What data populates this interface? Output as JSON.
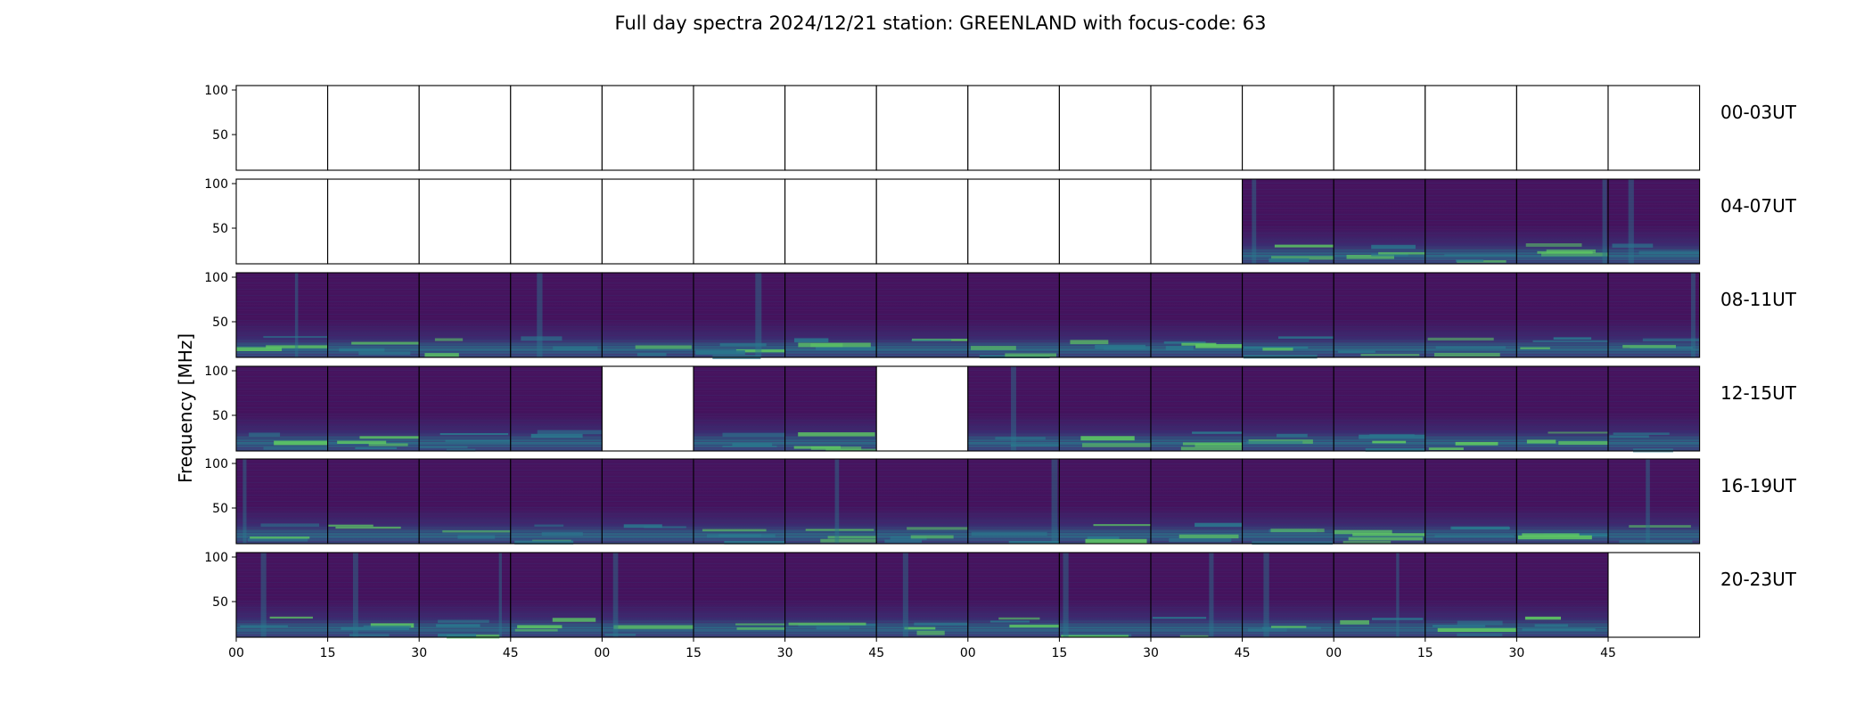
{
  "chart_data": {
    "type": "heatmap",
    "title": "Full day spectra 2024/12/21 station: GREENLAND with focus-code: 63",
    "ylabel": "Frequency [MHz]",
    "xlabel": "",
    "ylim": [
      10,
      105
    ],
    "y_ticks": [
      "100",
      "50"
    ],
    "x_tick_labels": [
      "00",
      "15",
      "30",
      "45",
      "00",
      "15",
      "30",
      "45",
      "00",
      "15",
      "30",
      "45",
      "00",
      "15",
      "30",
      "45"
    ],
    "colormap": {
      "low": "#440154",
      "base": "#46145f",
      "mid": "#2a788e",
      "high": "#5ec962"
    },
    "grid": false,
    "rows": [
      {
        "label": "00-03UT",
        "panels": [
          0,
          0,
          0,
          0,
          0,
          0,
          0,
          0,
          0,
          0,
          0,
          0,
          0,
          0,
          0,
          0
        ]
      },
      {
        "label": "04-07UT",
        "panels": [
          0,
          0,
          0,
          0,
          0,
          0,
          0,
          0,
          0,
          0,
          0,
          1,
          1,
          1,
          1,
          1
        ]
      },
      {
        "label": "08-11UT",
        "panels": [
          1,
          1,
          1,
          1,
          1,
          1,
          1,
          1,
          1,
          1,
          1,
          1,
          1,
          1,
          1,
          1
        ]
      },
      {
        "label": "12-15UT",
        "panels": [
          1,
          1,
          1,
          1,
          0,
          1,
          1,
          0,
          1,
          1,
          1,
          1,
          1,
          1,
          1,
          1
        ]
      },
      {
        "label": "16-19UT",
        "panels": [
          1,
          1,
          1,
          1,
          1,
          1,
          1,
          1,
          1,
          1,
          1,
          1,
          1,
          1,
          1,
          1
        ]
      },
      {
        "label": "20-23UT",
        "panels": [
          1,
          1,
          1,
          1,
          1,
          1,
          1,
          1,
          1,
          1,
          1,
          1,
          1,
          1,
          1,
          0
        ]
      }
    ]
  }
}
